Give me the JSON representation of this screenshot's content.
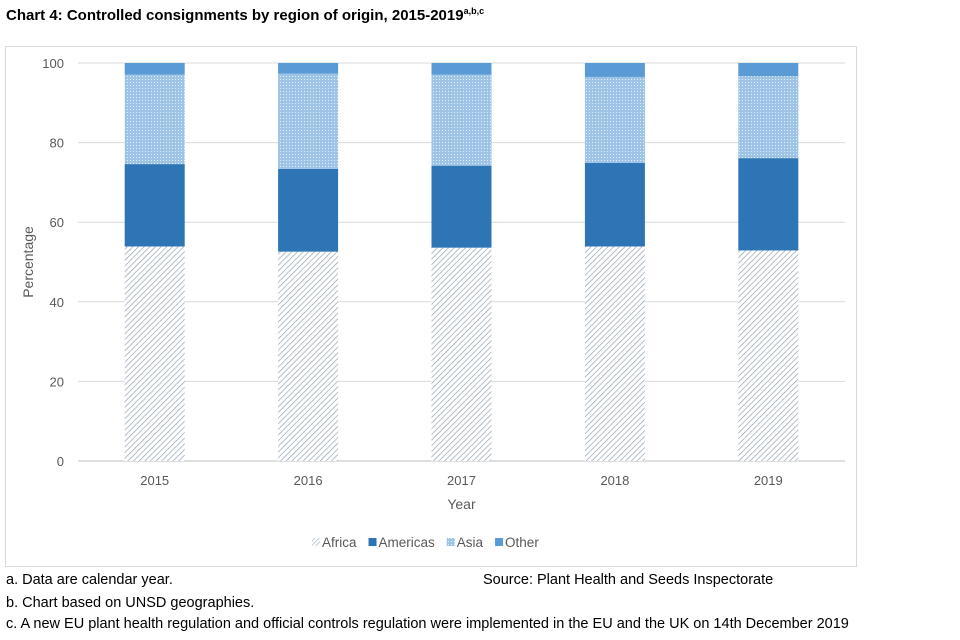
{
  "title": "Chart 4: Controlled consignments by region of origin, 2015-2019",
  "title_superscript": "a,b,c",
  "chart_data": {
    "type": "bar",
    "stacked": true,
    "categories": [
      "2015",
      "2016",
      "2017",
      "2018",
      "2019"
    ],
    "series": [
      {
        "name": "Africa",
        "values": [
          53.9,
          52.6,
          53.6,
          53.9,
          52.9
        ],
        "color": "#8a9bb0",
        "pattern": "diagonal-hatch"
      },
      {
        "name": "Americas",
        "values": [
          20.7,
          20.8,
          20.6,
          21.0,
          23.2
        ],
        "color": "#2e75b6",
        "pattern": "solid"
      },
      {
        "name": "Asia",
        "values": [
          22.5,
          23.9,
          22.9,
          21.6,
          20.6
        ],
        "color": "#9dc3e6",
        "pattern": "dotted"
      },
      {
        "name": "Other",
        "values": [
          2.9,
          2.7,
          2.9,
          3.5,
          3.3
        ],
        "color": "#5b9bd5",
        "pattern": "solid"
      }
    ],
    "xlabel": "Year",
    "ylabel": "Percentage",
    "ylim": [
      0,
      100
    ],
    "yticks": [
      0,
      20,
      40,
      60,
      80,
      100
    ],
    "grid": true,
    "legend_position": "bottom"
  },
  "notes": [
    "a. Data are calendar year.",
    "b. Chart based on UNSD geographies.",
    "c. A new EU plant health regulation and official controls regulation were implemented in the EU and the UK on 14th December 2019"
  ],
  "source": "Source: Plant Health and Seeds Inspectorate"
}
